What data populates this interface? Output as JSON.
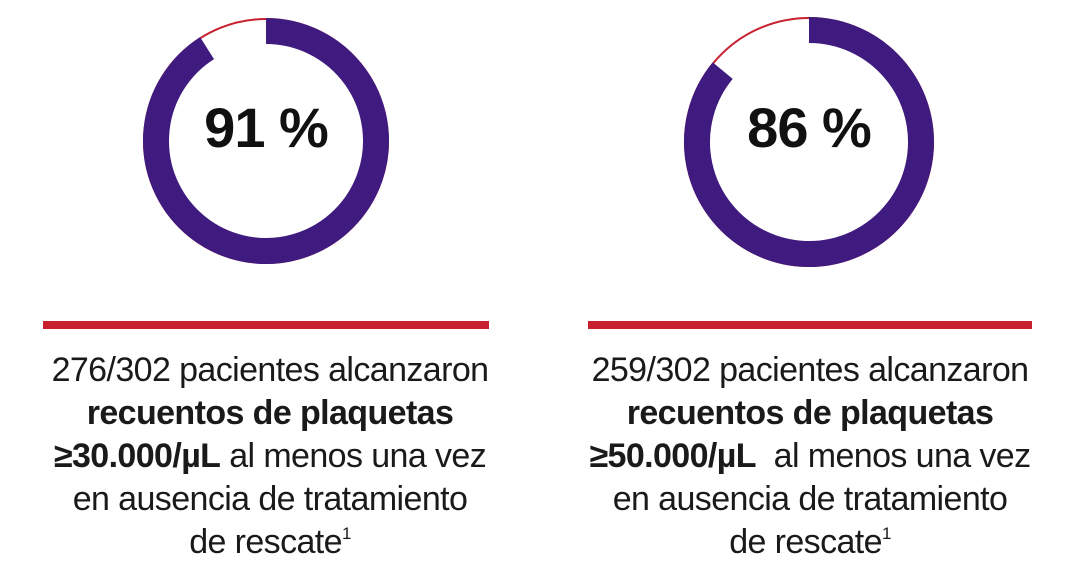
{
  "colors": {
    "ring": "#3f1b7f",
    "remainder": "#c8202f",
    "divider": "#c8202f"
  },
  "chart_data": [
    {
      "type": "pie",
      "value_label": "91 %",
      "values": [
        91,
        9
      ],
      "caption": {
        "line1": "276/302 pacientes alcanzaron",
        "line2_bold": "recuentos de plaquetas",
        "line3_bold": "≥30.000/µL",
        "line3_rest": " al menos una vez",
        "line4": "en ausencia de tratamiento",
        "line5": "de rescate",
        "footnote": "1"
      }
    },
    {
      "type": "pie",
      "value_label": "86 %",
      "values": [
        86,
        14
      ],
      "caption": {
        "line1": "259/302 pacientes alcanzaron",
        "line2_bold": "recuentos de plaquetas",
        "line3_bold": "≥50.000/µL",
        "line3_rest": "  al menos una vez",
        "line4": "en ausencia de tratamiento",
        "line5": "de rescate",
        "footnote": "1"
      }
    }
  ]
}
